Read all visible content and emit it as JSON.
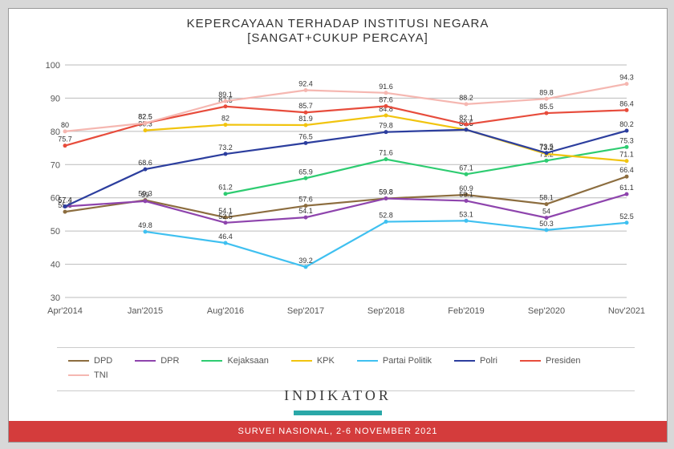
{
  "title": {
    "line1": "KEPERCAYAAN TERHADAP INSTITUSI NEGARA",
    "line2": "[SANGAT+CUKUP PERCAYA]"
  },
  "chart": {
    "type": "line",
    "categories": [
      "Apr'2014",
      "Jan'2015",
      "Aug'2016",
      "Sep'2017",
      "Sep'2018",
      "Feb'2019",
      "Sep'2020",
      "Nov'2021"
    ],
    "ylim": [
      30,
      100
    ],
    "ytick_step": 10,
    "grid_color": "#bbbbbb",
    "background_color": "#ffffff",
    "axis_fontsize": 11,
    "label_fontsize": 9,
    "series": [
      {
        "name": "DPD",
        "color": "#8c6d3f",
        "values": [
          55.8,
          59.3,
          54.1,
          57.6,
          59.8,
          60.9,
          58.1,
          66.4
        ]
      },
      {
        "name": "DPR",
        "color": "#8e44ad",
        "values": [
          57.4,
          59.0,
          52.5,
          54.1,
          59.8,
          59.1,
          54.0,
          61.1
        ]
      },
      {
        "name": "Kejaksaan",
        "color": "#2ecc71",
        "values": [
          null,
          null,
          61.2,
          65.9,
          71.6,
          67.1,
          71.2,
          75.3
        ]
      },
      {
        "name": "KPK",
        "color": "#f1c40f",
        "values": [
          null,
          80.3,
          82.0,
          81.9,
          84.8,
          80.5,
          73.2,
          71.1
        ]
      },
      {
        "name": "Partai Politik",
        "color": "#3fc0f0",
        "values": [
          null,
          49.8,
          46.4,
          39.2,
          52.8,
          53.1,
          50.3,
          52.5
        ]
      },
      {
        "name": "Polri",
        "color": "#2c3e9e",
        "values": [
          57.4,
          68.6,
          73.2,
          76.5,
          79.8,
          80.5,
          73.5,
          80.2
        ]
      },
      {
        "name": "Presiden",
        "color": "#e74c3c",
        "values": [
          75.7,
          82.5,
          87.5,
          85.7,
          87.6,
          82.1,
          85.5,
          86.4
        ]
      },
      {
        "name": "TNI",
        "color": "#f5b7b1",
        "values": [
          80.0,
          82.5,
          89.1,
          92.4,
          91.6,
          88.2,
          89.8,
          94.3
        ]
      }
    ]
  },
  "legend_order": [
    "DPD",
    "DPR",
    "Kejaksaan",
    "KPK",
    "Partai Politik",
    "Polri",
    "Presiden",
    "TNI"
  ],
  "footer": {
    "logo_text": "INDIKATOR",
    "band_text": "SURVEI NASIONAL, 2-6 NOVEMBER 2021",
    "band_color": "#d43c3c",
    "teal_color": "#2aa8a8"
  }
}
